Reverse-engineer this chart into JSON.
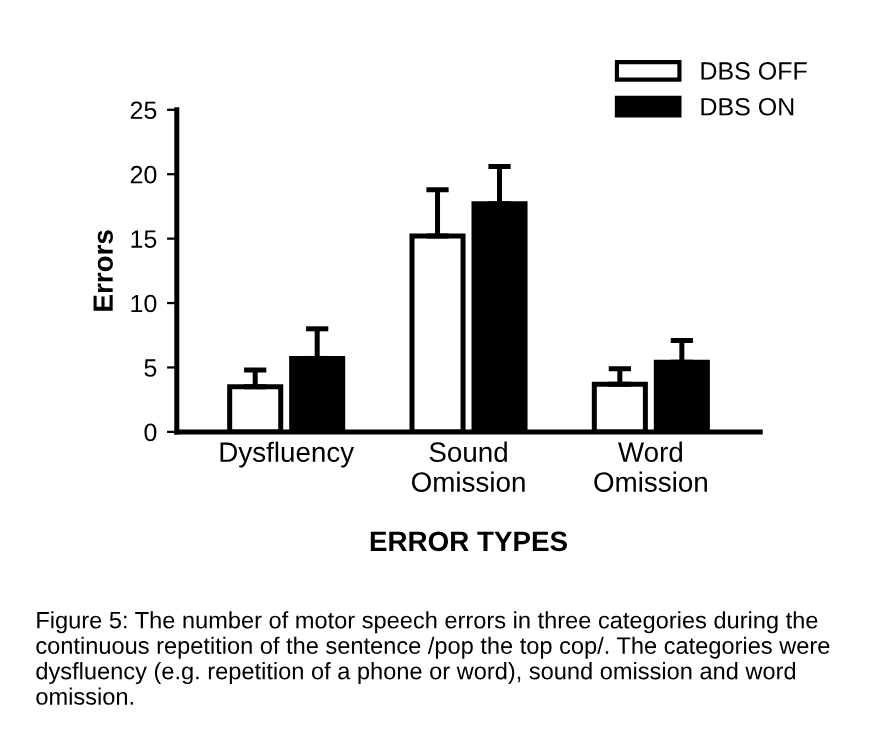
{
  "chart_data": {
    "type": "bar",
    "xlabel": "ERROR TYPES",
    "ylabel": "Errors",
    "categories": [
      "Dysfluency",
      "Sound\nOmission",
      "Word\nOmission"
    ],
    "series": [
      {
        "name": "DBS OFF",
        "color": "#ffffff",
        "values": [
          3.5,
          15.2,
          3.7
        ],
        "errors": [
          [
            3.5,
            4.8
          ],
          [
            15.2,
            18.8
          ],
          [
            3.7,
            4.9
          ]
        ]
      },
      {
        "name": "DBS ON",
        "color": "#000000",
        "values": [
          5.7,
          17.7,
          5.4
        ],
        "errors": [
          [
            5.7,
            8.0
          ],
          [
            17.7,
            20.6
          ],
          [
            5.4,
            7.1
          ]
        ]
      }
    ],
    "ylim": [
      0,
      25
    ],
    "yticks": [
      0,
      5,
      10,
      15,
      20,
      25
    ],
    "grid": false,
    "legend": "top right",
    "annotations": [
      "Figure 5: The number of motor speech errors in three categories during the continuous repetition of the sentence /pop the top cop/. The categories were dysfluency (e.g. repetition of a phone or word), sound omission and word omission."
    ]
  }
}
